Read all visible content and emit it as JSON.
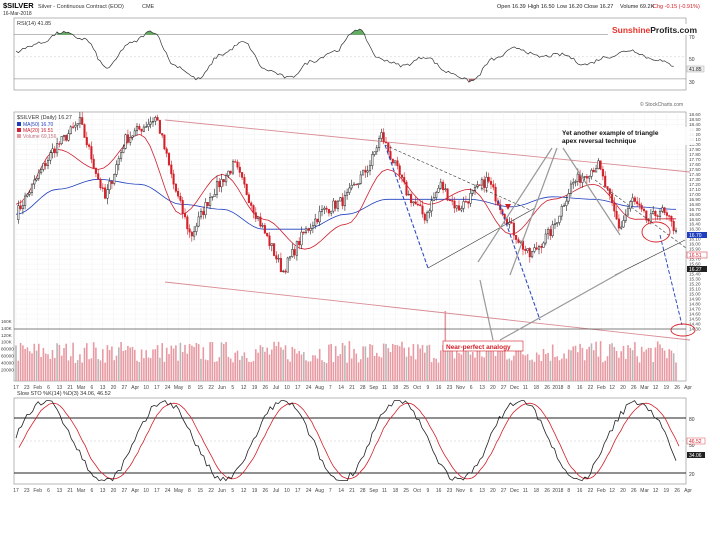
{
  "header": {
    "symbol": "$SILVER",
    "name": "Silver - Continuous Contract (EOD)",
    "exchange": "CME",
    "date": "16-Mar-2018",
    "open": "Open 16.39",
    "high": "High 16.50",
    "low": "Low 16.20",
    "close": "Close 16.27",
    "volume": "Volume 69.2K",
    "change": "Chg -0.15 (-0.91%)",
    "watermark": "© StockCharts.com"
  },
  "brand": {
    "part1": "Sunshine",
    "part2": "Profits.com",
    "color1": "#e8322b",
    "color2": "#222222"
  },
  "colors": {
    "up": "#222222",
    "down": "#d32029",
    "ma50": "#1f3fbf",
    "ma20": "#d02030",
    "rsi": "#333333",
    "volume": "#e89aa3",
    "stoch_fast": "#222222",
    "stoch_slow": "#d32029"
  },
  "rsi_panel": {
    "label": "RSI(14) 41.85",
    "ticks": [
      "70",
      "50",
      "30"
    ],
    "current_tag": "41.85",
    "ylim": [
      20,
      85
    ]
  },
  "price_panel": {
    "label": "$SILVER (Daily) 16.27",
    "legend": [
      {
        "text": "MA(50) 16.70",
        "color": "#1f3fbf"
      },
      {
        "text": "MA(20) 16.51",
        "color": "#d02030"
      },
      {
        "text": "Volume 69,156",
        "color": "#e89aa3"
      }
    ],
    "price_ticks": [
      "18.60",
      "18.50",
      "18.40",
      "18.30",
      "18.20",
      "18.10",
      "18.00",
      "17.90",
      "17.80",
      "17.70",
      "17.60",
      "17.50",
      "17.40",
      "17.30",
      "17.20",
      "17.10",
      "17.00",
      "16.90",
      "16.80",
      "16.70",
      "16.60",
      "16.50",
      "16.40",
      "16.30",
      "16.20",
      "16.10",
      "16.00",
      "15.90",
      "15.80",
      "15.70",
      "15.60",
      "15.50",
      "15.40",
      "15.30",
      "15.20",
      "15.10",
      "15.00",
      "14.90",
      "14.80",
      "14.70",
      "14.60",
      "14.50",
      "14.40",
      "14.30"
    ],
    "volume_ticks": [
      "160K",
      "140K",
      "120K",
      "100K",
      "80000",
      "60000",
      "40000",
      "20000"
    ],
    "tags": [
      {
        "text": "16.70",
        "color": "#1f3fbf"
      },
      {
        "text": "16.51",
        "color": "#d02030"
      },
      {
        "text": "16.27",
        "color": "#222222"
      }
    ],
    "annotations": {
      "triangle_text_line1": "Yet another example of triangle",
      "triangle_text_line2": "apex reversal technique",
      "analogy_text": "Near-perfect analogy"
    }
  },
  "stoch_panel": {
    "label": "Slow STO %K(14) %D(3) 34.06, 46.52",
    "ticks": [
      "80",
      "50",
      "20"
    ],
    "tags": [
      "46.52",
      "34.06"
    ]
  },
  "x_axis": {
    "labels": [
      "17",
      "23",
      "Feb",
      "6",
      "13",
      "21",
      "Mar",
      "6",
      "13",
      "20",
      "27",
      "Apr",
      "10",
      "17",
      "24",
      "May",
      "8",
      "15",
      "22",
      "Jun",
      "5",
      "12",
      "19",
      "26",
      "Jul",
      "10",
      "17",
      "24",
      "Aug",
      "7",
      "14",
      "21",
      "28",
      "Sep",
      "11",
      "18",
      "25",
      "Oct",
      "9",
      "16",
      "23",
      "Nov",
      "6",
      "13",
      "20",
      "27",
      "Dec",
      "11",
      "18",
      "26",
      "2018",
      "8",
      "16",
      "22",
      "Feb",
      "12",
      "20",
      "26",
      "Mar",
      "12",
      "19",
      "26",
      "Apr"
    ]
  },
  "chart_data": {
    "type": "candlestick",
    "title": "$SILVER Silver - Continuous Contract (EOD)",
    "period": "Jan 2017 - Mar 2018 (daily)",
    "last": {
      "open": 16.39,
      "high": 16.5,
      "low": 16.2,
      "close": 16.27,
      "volume": 69156,
      "change": -0.15,
      "change_pct": -0.91
    },
    "ylim": [
      14.3,
      18.65
    ],
    "anchors": [
      {
        "date": "2017-01-17",
        "price": 16.6
      },
      {
        "date": "2017-01-30",
        "price": 17.3
      },
      {
        "date": "2017-02-10",
        "price": 17.9
      },
      {
        "date": "2017-02-27",
        "price": 18.45
      },
      {
        "date": "2017-03-15",
        "price": 16.9
      },
      {
        "date": "2017-03-28",
        "price": 18.1
      },
      {
        "date": "2017-04-17",
        "price": 18.55
      },
      {
        "date": "2017-04-28",
        "price": 17.2
      },
      {
        "date": "2017-05-09",
        "price": 16.15
      },
      {
        "date": "2017-05-22",
        "price": 17.0
      },
      {
        "date": "2017-06-06",
        "price": 17.6
      },
      {
        "date": "2017-06-20",
        "price": 16.6
      },
      {
        "date": "2017-07-07",
        "price": 15.45
      },
      {
        "date": "2017-07-20",
        "price": 16.2
      },
      {
        "date": "2017-08-01",
        "price": 16.65
      },
      {
        "date": "2017-08-16",
        "price": 16.9
      },
      {
        "date": "2017-09-01",
        "price": 17.6
      },
      {
        "date": "2017-09-08",
        "price": 18.2
      },
      {
        "date": "2017-09-25",
        "price": 17.0
      },
      {
        "date": "2017-10-06",
        "price": 16.55
      },
      {
        "date": "2017-10-16",
        "price": 17.2
      },
      {
        "date": "2017-10-27",
        "price": 16.7
      },
      {
        "date": "2017-11-15",
        "price": 17.3
      },
      {
        "date": "2017-12-01",
        "price": 16.3
      },
      {
        "date": "2017-12-12",
        "price": 15.75
      },
      {
        "date": "2017-12-27",
        "price": 16.3
      },
      {
        "date": "2018-01-08",
        "price": 17.2
      },
      {
        "date": "2018-01-25",
        "price": 17.6
      },
      {
        "date": "2018-02-08",
        "price": 16.3
      },
      {
        "date": "2018-02-16",
        "price": 16.9
      },
      {
        "date": "2018-02-26",
        "price": 16.45
      },
      {
        "date": "2018-03-06",
        "price": 16.7
      },
      {
        "date": "2018-03-16",
        "price": 16.27
      }
    ],
    "ma50_anchors": [
      16.6,
      17.1,
      17.3,
      17.2,
      16.8,
      16.7,
      16.3,
      16.3,
      16.6,
      16.9,
      16.9,
      16.9,
      16.75,
      16.95,
      16.9,
      16.75,
      16.7
    ],
    "ma20_anchors": [
      16.8,
      17.9,
      17.5,
      18.2,
      16.6,
      17.4,
      16.5,
      15.9,
      16.4,
      17.5,
      16.8,
      17.1,
      16.2,
      16.9,
      17.2,
      16.5,
      16.51
    ],
    "rsi_anchors": [
      55,
      62,
      72,
      66,
      40,
      62,
      73,
      42,
      30,
      52,
      63,
      38,
      31,
      46,
      55,
      75,
      48,
      42,
      50,
      36,
      28,
      48,
      58,
      50,
      52,
      43,
      50,
      56,
      48,
      42
    ]
  }
}
